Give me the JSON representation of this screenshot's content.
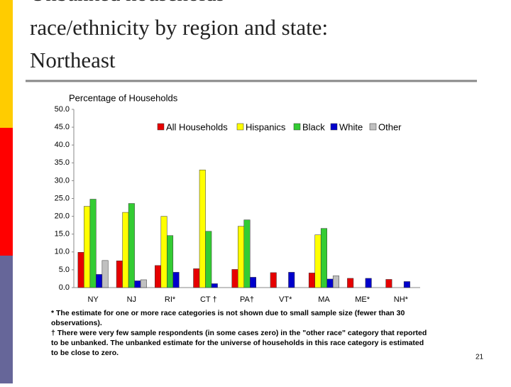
{
  "slide_title": [
    "Unbanked households",
    "race/ethnicity by region and state:",
    "Northeast"
  ],
  "chart_data": {
    "type": "bar",
    "title": "Percentage of Households",
    "categories": [
      "NY",
      "NJ",
      "RI*",
      "CT †",
      "PA†",
      "VT*",
      "MA",
      "ME*",
      "NH*"
    ],
    "series": [
      {
        "name": "All Households",
        "color": "#e60000",
        "values": [
          9.9,
          7.5,
          6.2,
          5.3,
          5.1,
          4.2,
          4.1,
          2.6,
          2.3
        ]
      },
      {
        "name": "Hispanics",
        "color": "#ffff00",
        "values": [
          22.8,
          21.1,
          20.0,
          33.0,
          17.2,
          null,
          14.8,
          null,
          null
        ]
      },
      {
        "name": "Black",
        "color": "#33cc33",
        "values": [
          24.8,
          23.6,
          14.6,
          15.8,
          19.0,
          null,
          16.6,
          null,
          null
        ]
      },
      {
        "name": "White",
        "color": "#0000cc",
        "values": [
          3.7,
          1.9,
          4.3,
          1.1,
          2.9,
          4.3,
          2.4,
          2.6,
          1.7
        ]
      },
      {
        "name": "Other",
        "color": "#c0c0c0",
        "values": [
          7.6,
          2.2,
          null,
          null,
          null,
          null,
          3.3,
          null,
          null
        ]
      }
    ],
    "ylim": [
      0,
      50
    ],
    "yticks": [
      {
        "value": 0,
        "label": "0.0"
      },
      {
        "value": 5,
        "label": "5.0"
      },
      {
        "value": 10,
        "label": "10.0"
      },
      {
        "value": 15,
        "label": "15.0"
      },
      {
        "value": 20,
        "label": "20.0"
      },
      {
        "value": 25,
        "label": "25.0"
      },
      {
        "value": 30,
        "label": "30.0"
      },
      {
        "value": 35,
        "label": "35.0"
      },
      {
        "value": 40,
        "label": "40.0"
      },
      {
        "value": 45,
        "label": "45.0"
      },
      {
        "value": 50,
        "label": "50.0"
      }
    ],
    "grid": false
  },
  "footnotes": [
    "* The estimate for one or more race categories is not shown due to small sample size (fewer than 30",
    "observations).",
    "† There were very few sample respondents (in some cases zero) in the \"other race\" category that reported",
    "to be unbanked. The unbanked estimate for the universe of households in this race category is estimated",
    "to be close to zero."
  ],
  "page_number": "21"
}
